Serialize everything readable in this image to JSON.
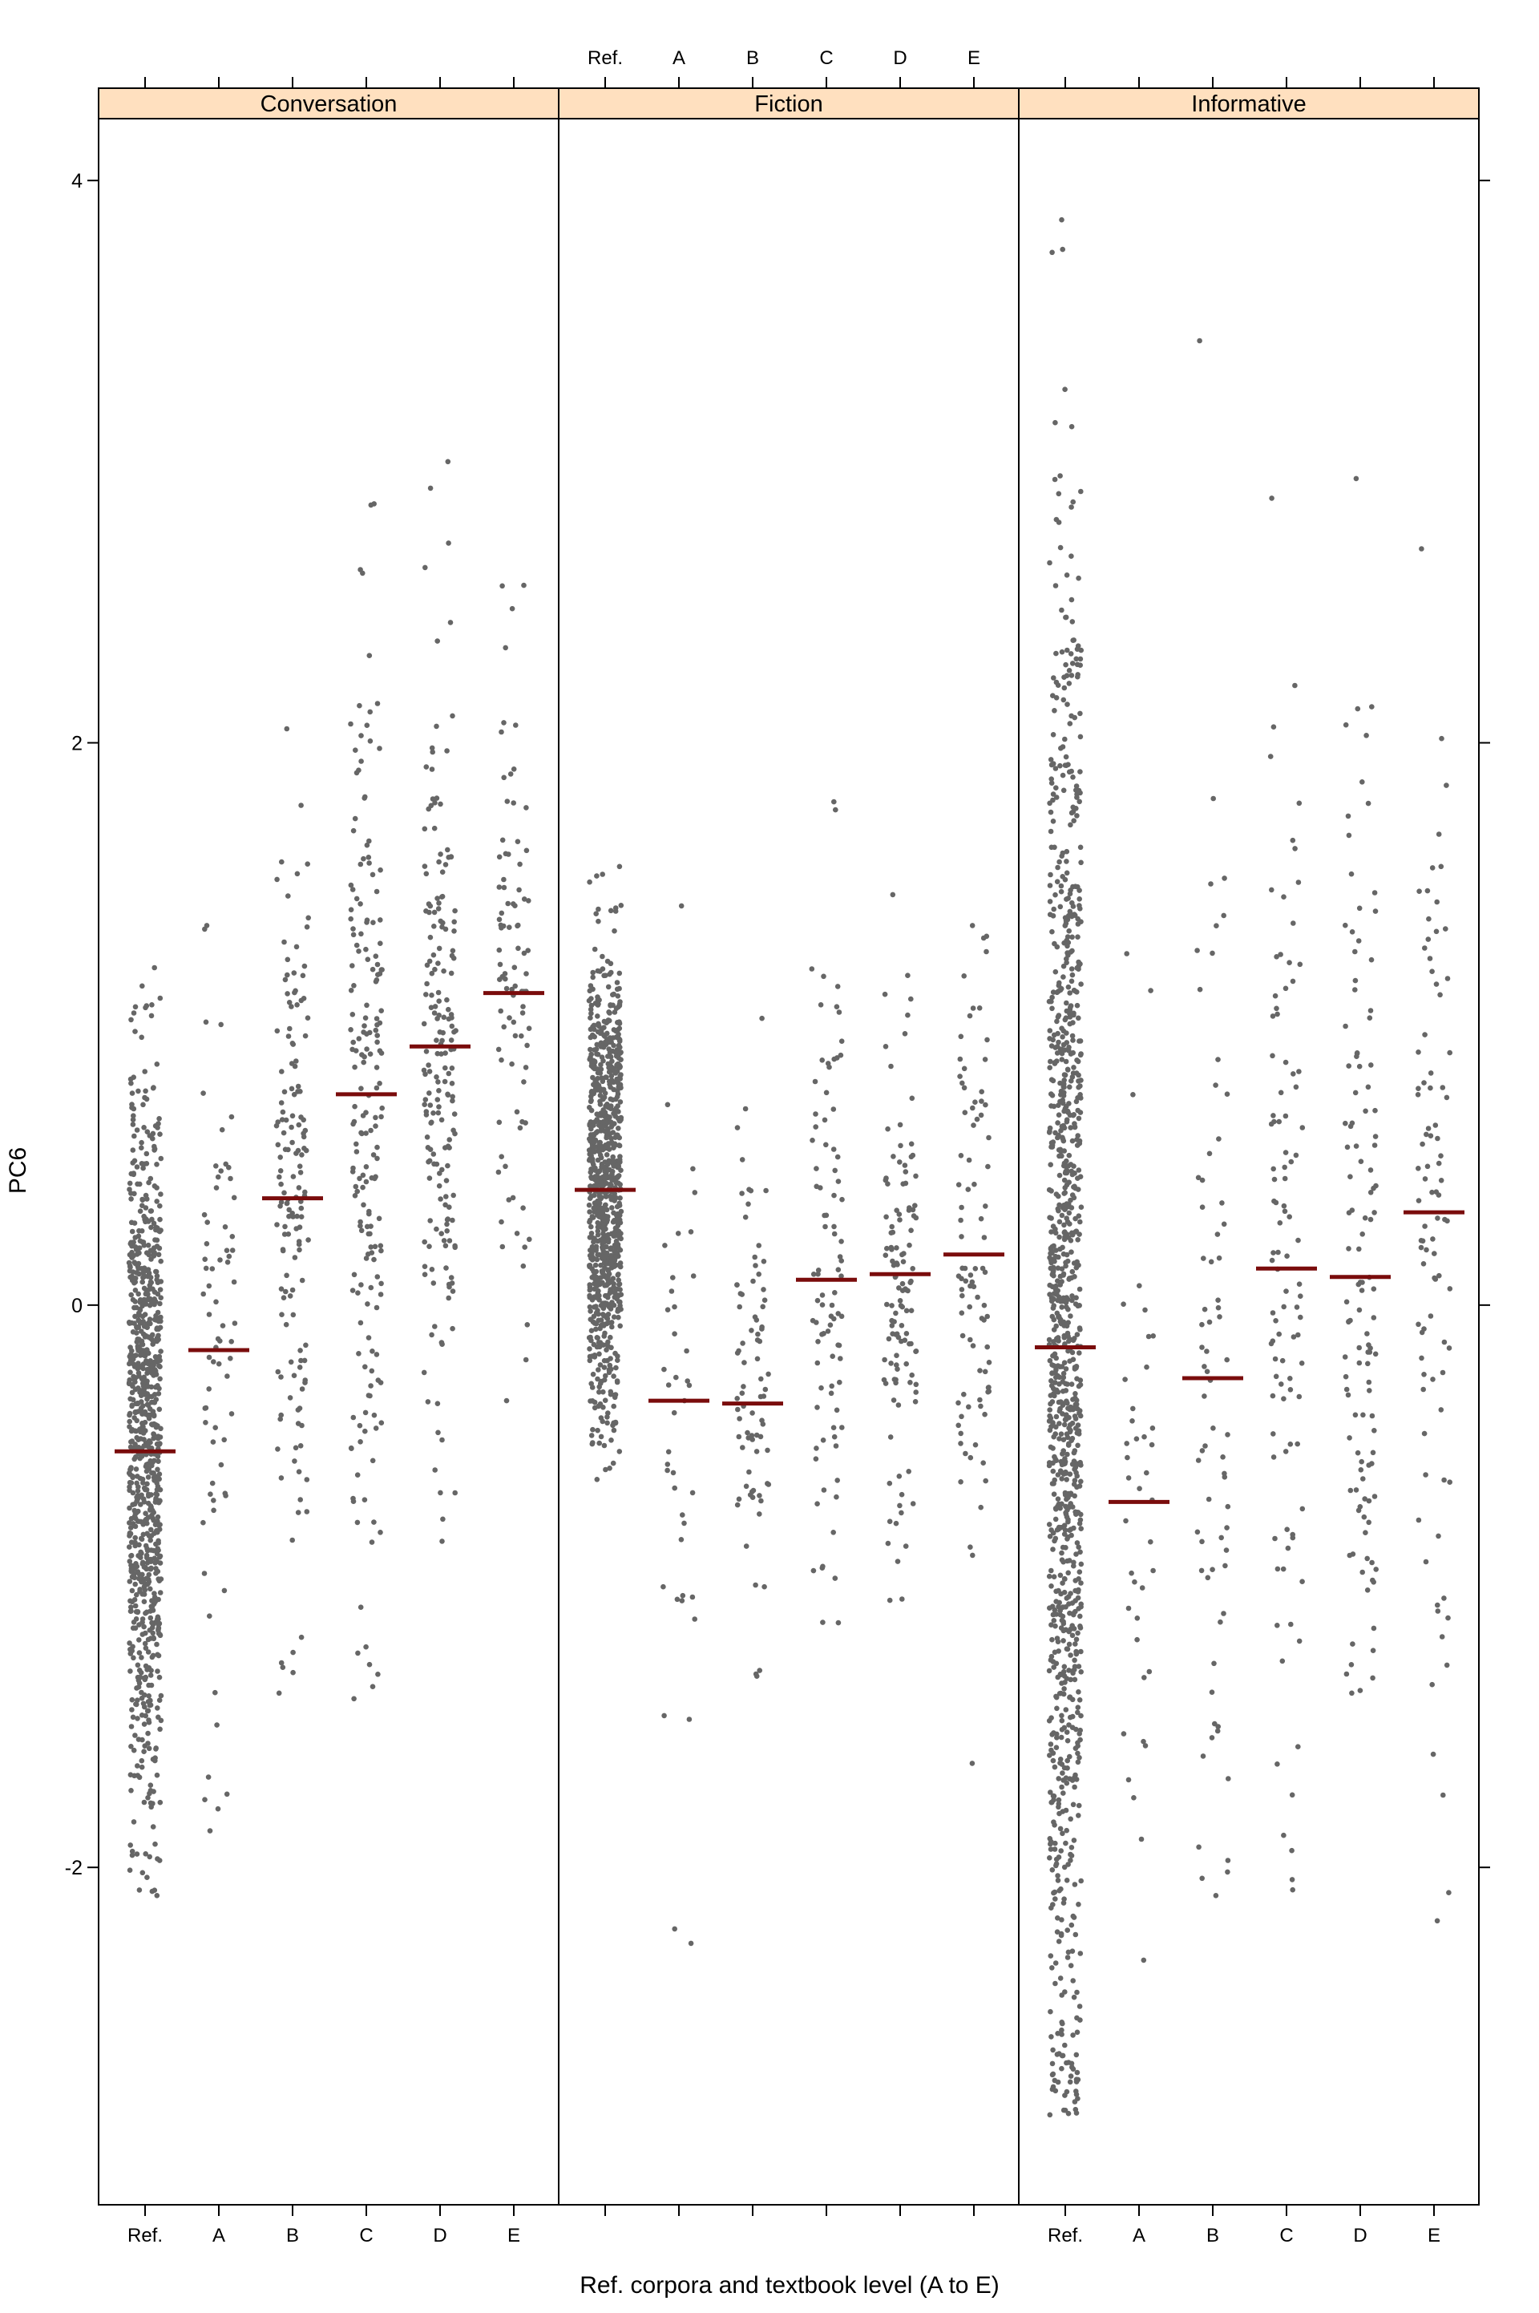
{
  "chart_data": {
    "type": "scatter",
    "subtype": "trellis strip plot (jittered points with group medians)",
    "xlabel": "Ref. corpora and textbook level (A to E)",
    "ylabel": "PC6",
    "ylim": [
      -3.2,
      4.22
    ],
    "y_ticks": [
      -2,
      0,
      2,
      4
    ],
    "categories": [
      "Ref.",
      "A",
      "B",
      "C",
      "D",
      "E"
    ],
    "panels": [
      "Conversation",
      "Fiction",
      "Informative"
    ],
    "point_color": "#666666",
    "median_color": "#7a0c0c",
    "strip_color": "#ffe0bf",
    "groups": [
      {
        "panel": "Conversation",
        "category": "Ref.",
        "n": 900,
        "median": -0.52,
        "min": -2.1,
        "max": 1.2
      },
      {
        "panel": "Conversation",
        "category": "A",
        "n": 70,
        "median": -0.16,
        "min": -1.87,
        "max": 1.35
      },
      {
        "panel": "Conversation",
        "category": "B",
        "n": 150,
        "median": 0.38,
        "min": -1.38,
        "max": 2.05
      },
      {
        "panel": "Conversation",
        "category": "C",
        "n": 190,
        "median": 0.75,
        "min": -1.4,
        "max": 2.85
      },
      {
        "panel": "Conversation",
        "category": "D",
        "n": 190,
        "median": 0.92,
        "min": -0.84,
        "max": 3.0
      },
      {
        "panel": "Conversation",
        "category": "E",
        "n": 90,
        "median": 1.11,
        "min": -0.34,
        "max": 2.56
      },
      {
        "panel": "Fiction",
        "category": "Ref.",
        "n": 900,
        "median": 0.41,
        "min": -0.62,
        "max": 1.56
      },
      {
        "panel": "Fiction",
        "category": "A",
        "n": 40,
        "median": -0.34,
        "min": -2.27,
        "max": 1.42
      },
      {
        "panel": "Fiction",
        "category": "B",
        "n": 80,
        "median": -0.35,
        "min": -1.32,
        "max": 1.02
      },
      {
        "panel": "Fiction",
        "category": "C",
        "n": 90,
        "median": 0.09,
        "min": -1.13,
        "max": 1.79
      },
      {
        "panel": "Fiction",
        "category": "D",
        "n": 120,
        "median": 0.11,
        "min": -1.05,
        "max": 1.46
      },
      {
        "panel": "Fiction",
        "category": "E",
        "n": 90,
        "median": 0.18,
        "min": -1.63,
        "max": 1.35
      },
      {
        "panel": "Informative",
        "category": "Ref.",
        "n": 1100,
        "median": -0.15,
        "min": -2.88,
        "max": 3.86
      },
      {
        "panel": "Informative",
        "category": "A",
        "n": 40,
        "median": -0.7,
        "min": -2.33,
        "max": 1.25
      },
      {
        "panel": "Informative",
        "category": "B",
        "n": 70,
        "median": -0.26,
        "min": -2.1,
        "max": 3.43
      },
      {
        "panel": "Informative",
        "category": "C",
        "n": 100,
        "median": 0.13,
        "min": -2.08,
        "max": 2.87
      },
      {
        "panel": "Informative",
        "category": "D",
        "n": 120,
        "median": 0.1,
        "min": -1.38,
        "max": 2.94
      },
      {
        "panel": "Informative",
        "category": "E",
        "n": 90,
        "median": 0.33,
        "min": -2.19,
        "max": 2.69
      }
    ],
    "grid": false,
    "legend": "none"
  }
}
